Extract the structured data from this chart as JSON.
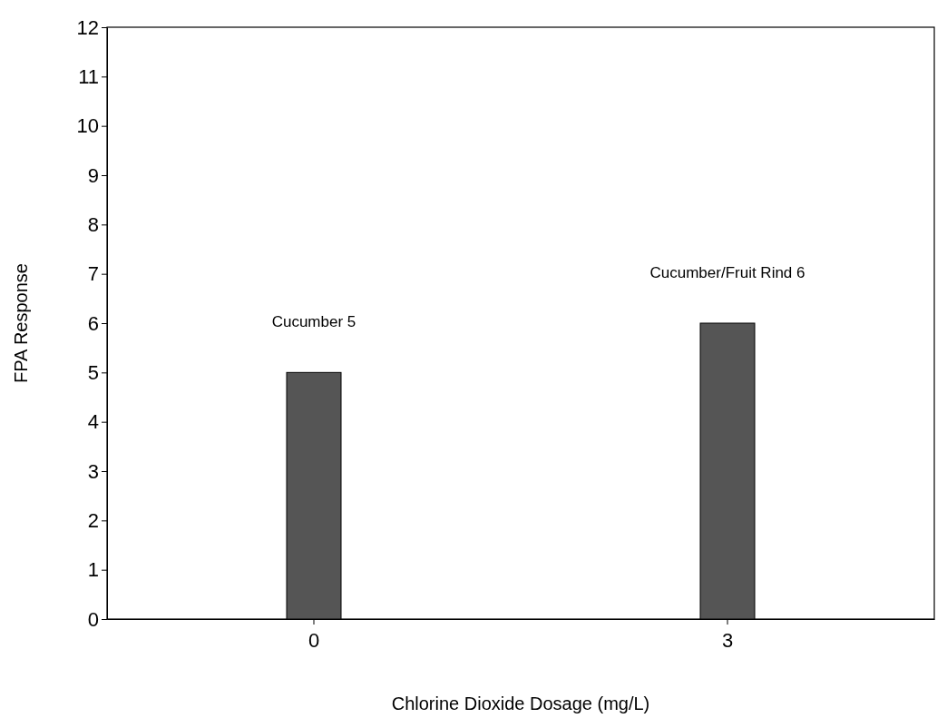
{
  "chart_data": {
    "type": "bar",
    "xlabel": "Chlorine Dioxide Dosage (mg/L)",
    "ylabel": "FPA Response",
    "categories": [
      "0",
      "3"
    ],
    "values": [
      5,
      6
    ],
    "value_labels": [
      "Cucumber 5",
      "Cucumber/Fruit Rind 6"
    ],
    "color": "#555555",
    "ylim": [
      0,
      12
    ],
    "yticks": [
      0,
      1,
      2,
      3,
      4,
      5,
      6,
      7,
      8,
      9,
      10,
      11,
      12
    ],
    "grid": false
  }
}
